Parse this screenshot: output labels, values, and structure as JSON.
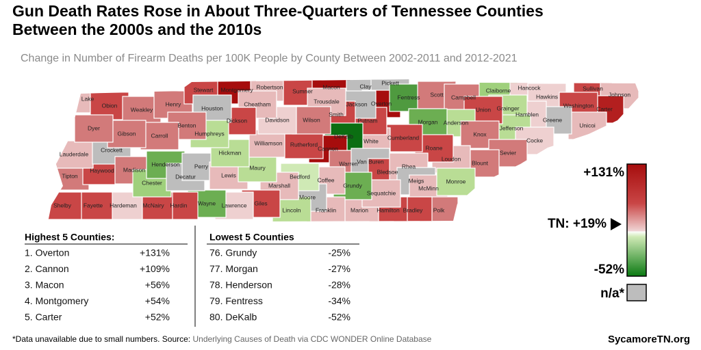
{
  "title": [
    "Gun Death Rates Rose in About Three-Quarters of Tennessee Counties",
    "Between the 2000s and the 2010s"
  ],
  "subtitle": "Change in Number of Firearm Deaths per 100K People by County Between 2002-2011 and 2012-2021",
  "map": {
    "counties": [
      {
        "name": "Lake",
        "color": "#e7baba"
      },
      {
        "name": "Obion",
        "color": "#c94646"
      },
      {
        "name": "Weakley",
        "color": "#d27a7a"
      },
      {
        "name": "Henry",
        "color": "#d27a7a"
      },
      {
        "name": "Stewart",
        "color": "#c94646"
      },
      {
        "name": "Montgomery",
        "color": "#a60d0d"
      },
      {
        "name": "Robertson",
        "color": "#e7baba"
      },
      {
        "name": "Sumner",
        "color": "#c94646"
      },
      {
        "name": "Macon",
        "color": "#a60d0d"
      },
      {
        "name": "Clay",
        "color": "#bdbdbd"
      },
      {
        "name": "Pickett",
        "color": "#bdbdbd"
      },
      {
        "name": "Overton",
        "color": "#a60d0d"
      },
      {
        "name": "Fentress",
        "color": "#4f9a3f"
      },
      {
        "name": "Scott",
        "color": "#d27a7a"
      },
      {
        "name": "Campbell",
        "color": "#d27a7a"
      },
      {
        "name": "Claiborne",
        "color": "#9fd07c"
      },
      {
        "name": "Hancock",
        "color": "#eed0d0"
      },
      {
        "name": "Hawkins",
        "color": "#eed0d0"
      },
      {
        "name": "Sullivan",
        "color": "#c94646"
      },
      {
        "name": "Johnson",
        "color": "#e7baba"
      },
      {
        "name": "Carter",
        "color": "#b31f1f"
      },
      {
        "name": "Washington",
        "color": "#c94646"
      },
      {
        "name": "Unicoi",
        "color": "#e7baba"
      },
      {
        "name": "Greene",
        "color": "#bdbdbd"
      },
      {
        "name": "Hamblen",
        "color": "#eed0d0"
      },
      {
        "name": "Grainger",
        "color": "#b9dd95"
      },
      {
        "name": "Jefferson",
        "color": "#b9dd95"
      },
      {
        "name": "Union",
        "color": "#c94646"
      },
      {
        "name": "Anderson",
        "color": "#b9dd95"
      },
      {
        "name": "Morgan",
        "color": "#6cae52"
      },
      {
        "name": "Cocke",
        "color": "#eed0d0"
      },
      {
        "name": "Knox",
        "color": "#d27a7a"
      },
      {
        "name": "Sevier",
        "color": "#d27a7a"
      },
      {
        "name": "Blount",
        "color": "#d27a7a"
      },
      {
        "name": "Loudon",
        "color": "#e7baba"
      },
      {
        "name": "Roane",
        "color": "#c94646"
      },
      {
        "name": "Cumberland",
        "color": "#c94646"
      },
      {
        "name": "White",
        "color": "#e7baba"
      },
      {
        "name": "Putnam",
        "color": "#c94646"
      },
      {
        "name": "Jackson",
        "color": "#bdbdbd"
      },
      {
        "name": "Smith",
        "color": "#c94646"
      },
      {
        "name": "Trousdale",
        "color": "#e7baba"
      },
      {
        "name": "DeKalb",
        "color": "#0b6e12"
      },
      {
        "name": "Cannon",
        "color": "#a60d0d"
      },
      {
        "name": "Warren",
        "color": "#d27a7a"
      },
      {
        "name": "Van Buren",
        "color": "#bdbdbd"
      },
      {
        "name": "Bledsoe",
        "color": "#c94646"
      },
      {
        "name": "Rhea",
        "color": "#e7baba"
      },
      {
        "name": "Meigs",
        "color": "#bdbdbd"
      },
      {
        "name": "McMinn",
        "color": "#e7baba"
      },
      {
        "name": "Monroe",
        "color": "#b9dd95"
      },
      {
        "name": "Polk",
        "color": "#d27a7a"
      },
      {
        "name": "Bradley",
        "color": "#c94646"
      },
      {
        "name": "Hamilton",
        "color": "#c94646"
      },
      {
        "name": "Marion",
        "color": "#e7baba"
      },
      {
        "name": "Sequatchie",
        "color": "#e7baba"
      },
      {
        "name": "Grundy",
        "color": "#6cae52"
      },
      {
        "name": "Franklin",
        "color": "#e7baba"
      },
      {
        "name": "Coffee",
        "color": "#e7baba"
      },
      {
        "name": "Moore",
        "color": "#bdbdbd"
      },
      {
        "name": "Lincoln",
        "color": "#b9dd95"
      },
      {
        "name": "Bedford",
        "color": "#cfe9b5"
      },
      {
        "name": "Marshall",
        "color": "#e7baba"
      },
      {
        "name": "Giles",
        "color": "#c94646"
      },
      {
        "name": "Lawrence",
        "color": "#eed0d0"
      },
      {
        "name": "Wayne",
        "color": "#6cae52"
      },
      {
        "name": "Hardin",
        "color": "#c94646"
      },
      {
        "name": "McNairy",
        "color": "#c94646"
      },
      {
        "name": "Hardeman",
        "color": "#eed0d0"
      },
      {
        "name": "Fayette",
        "color": "#c94646"
      },
      {
        "name": "Shelby",
        "color": "#c94646"
      },
      {
        "name": "Tipton",
        "color": "#d27a7a"
      },
      {
        "name": "Haywood",
        "color": "#c94646"
      },
      {
        "name": "Lauderdale",
        "color": "#e7baba"
      },
      {
        "name": "Crockett",
        "color": "#bdbdbd"
      },
      {
        "name": "Madison",
        "color": "#d27a7a"
      },
      {
        "name": "Chester",
        "color": "#9fd07c"
      },
      {
        "name": "Henderson",
        "color": "#6cae52"
      },
      {
        "name": "Decatur",
        "color": "#bdbdbd"
      },
      {
        "name": "Perry",
        "color": "#bdbdbd"
      },
      {
        "name": "Lewis",
        "color": "#e7baba"
      },
      {
        "name": "Maury",
        "color": "#b9dd95"
      },
      {
        "name": "Hickman",
        "color": "#b9dd95"
      },
      {
        "name": "Williamson",
        "color": "#e7baba"
      },
      {
        "name": "Rutherford",
        "color": "#c94646"
      },
      {
        "name": "Wilson",
        "color": "#d27a7a"
      },
      {
        "name": "Davidson",
        "color": "#eed0d0"
      },
      {
        "name": "Cheatham",
        "color": "#e7baba"
      },
      {
        "name": "Dickson",
        "color": "#c94646"
      },
      {
        "name": "Houston",
        "color": "#bdbdbd"
      },
      {
        "name": "Humphreys",
        "color": "#b9dd95"
      },
      {
        "name": "Benton",
        "color": "#d27a7a"
      },
      {
        "name": "Carroll",
        "color": "#d27a7a"
      },
      {
        "name": "Gibson",
        "color": "#d27a7a"
      },
      {
        "name": "Dyer",
        "color": "#d27a7a"
      }
    ]
  },
  "highest": {
    "heading": "Highest 5 Counties:",
    "rows": [
      [
        "1. Overton",
        "+131%"
      ],
      [
        "2. Cannon",
        "+109%"
      ],
      [
        "3. Macon",
        "+56%"
      ],
      [
        "4. Montgomery",
        "+54%"
      ],
      [
        "5. Carter",
        "+52%"
      ]
    ]
  },
  "lowest": {
    "heading": "Lowest 5 Counties",
    "rows": [
      [
        "76. Grundy",
        "-25%"
      ],
      [
        "77. Morgan",
        "-27%"
      ],
      [
        "78. Henderson",
        "-28%"
      ],
      [
        "79. Fentress",
        "-34%"
      ],
      [
        "80. DeKalb",
        "-52%"
      ]
    ]
  },
  "legend": {
    "max": "+131%",
    "state": "TN: +19%",
    "min": "-52%",
    "na": "n/a*"
  },
  "footer": {
    "note": "*Data unavailable due to small numbers. Source: ",
    "source": "Underlying Causes of Death via CDC WONDER Online Database",
    "brand": "SycamoreTN.org"
  }
}
